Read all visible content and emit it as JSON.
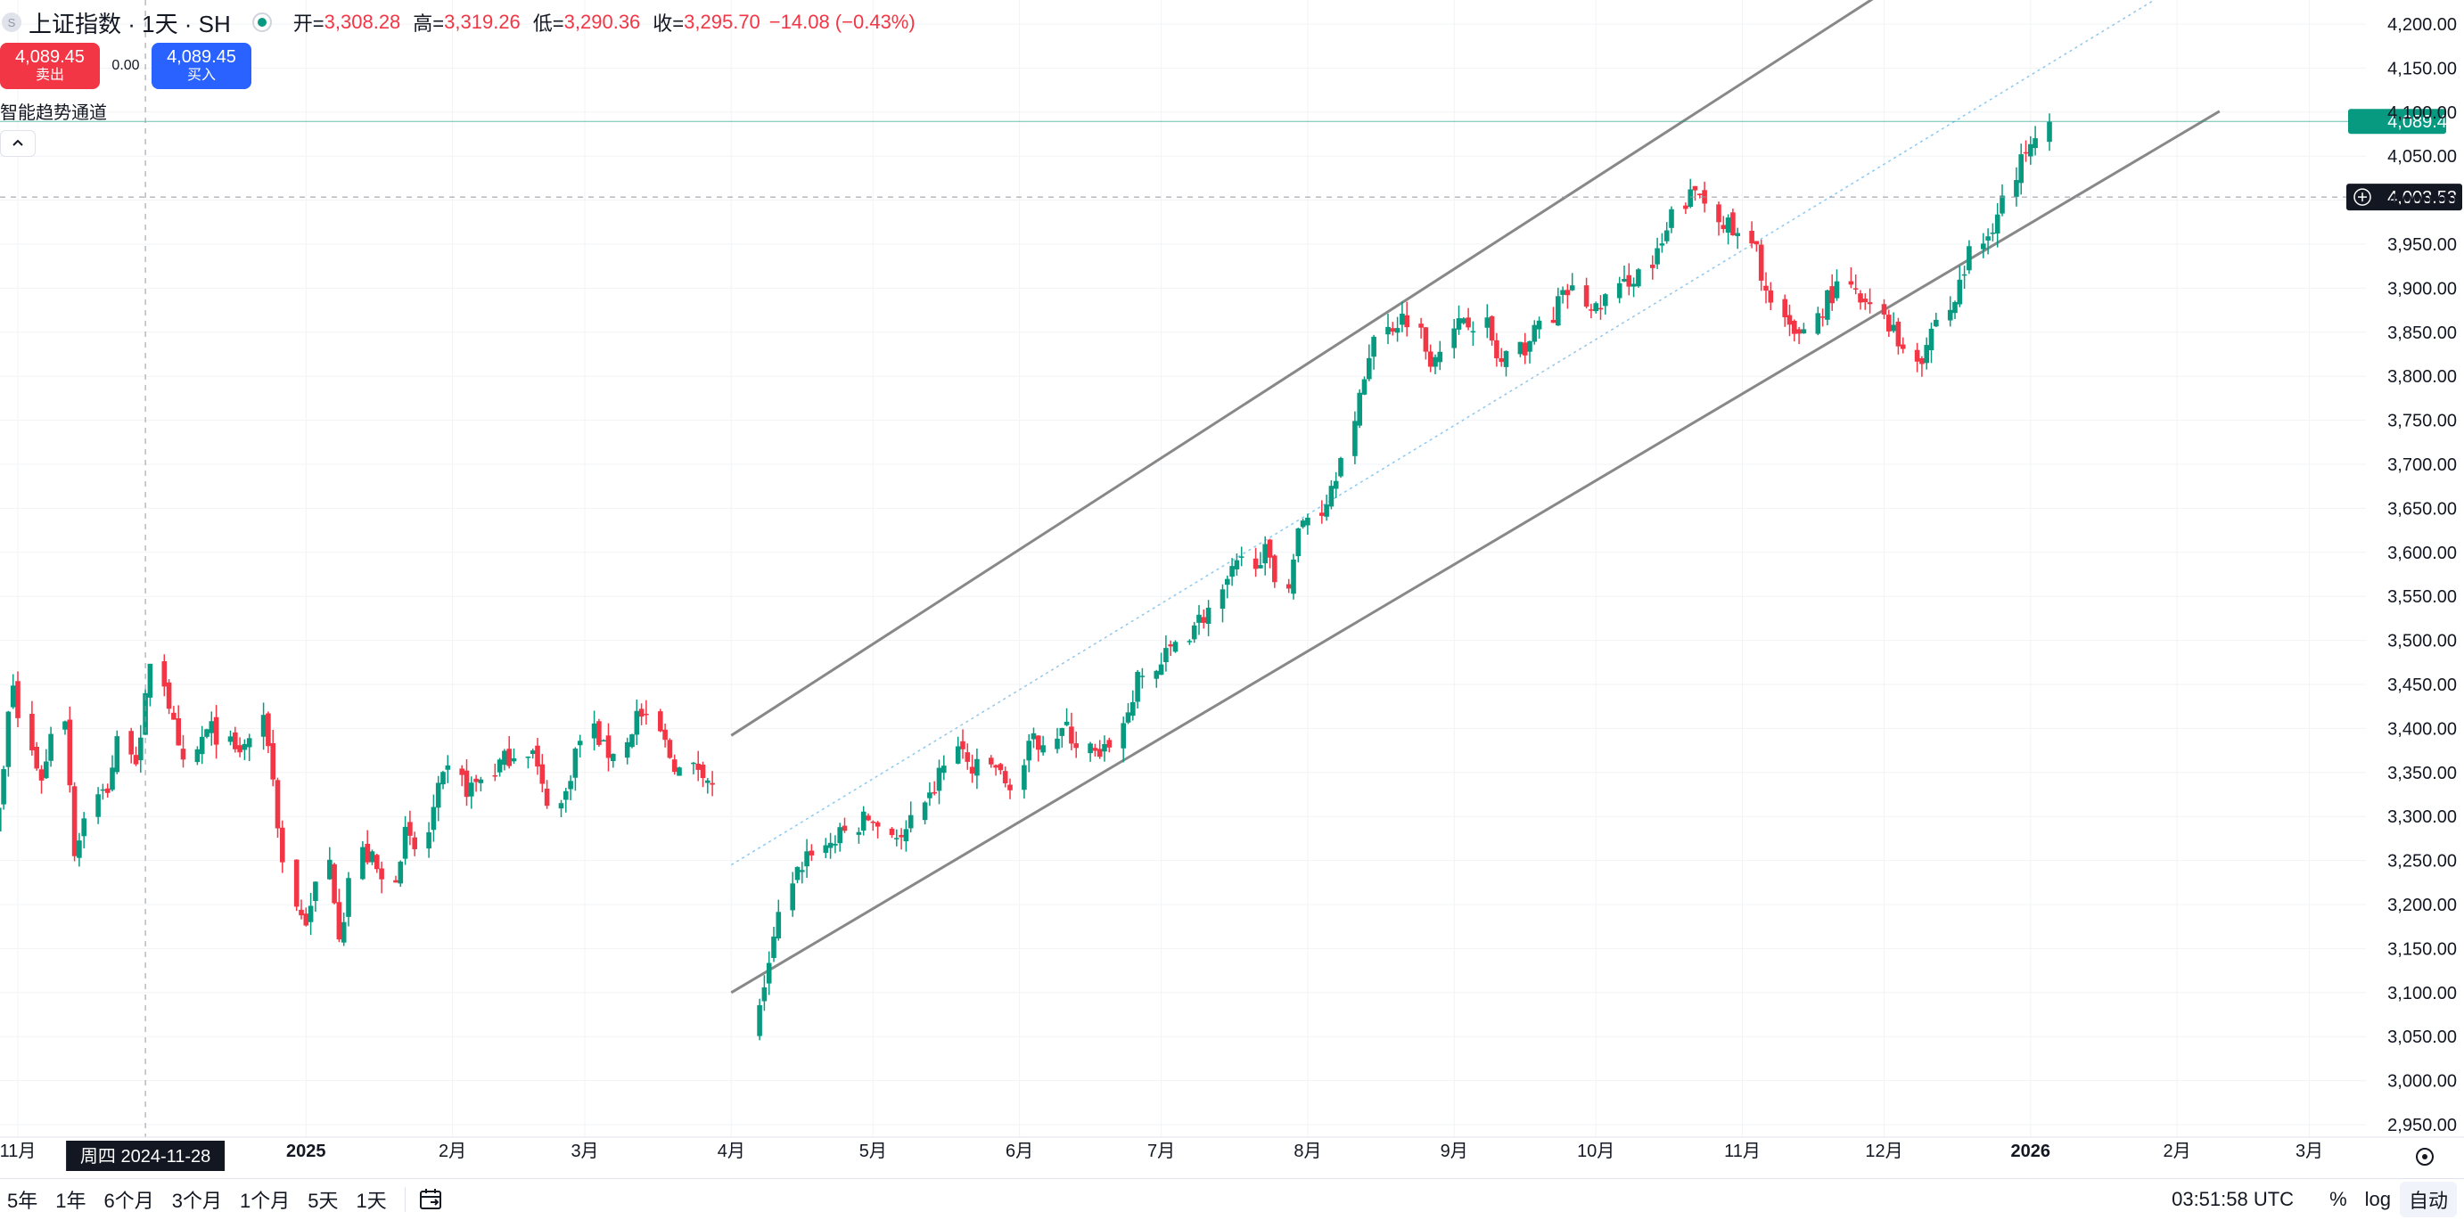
{
  "header": {
    "symbol": "上证指数 · 1天 · SH",
    "symbol_icon": "S",
    "ohlc": {
      "open_label": "开=",
      "open": "3,308.28",
      "high_label": "高=",
      "high": "3,319.26",
      "low_label": "低=",
      "low": "3,290.36",
      "close_label": "收=",
      "close": "3,295.70",
      "change": "−14.08 (−0.43%)"
    }
  },
  "trade": {
    "sell_price": "4,089.45",
    "sell_label": "卖出",
    "spread": "0.00",
    "buy_price": "4,089.45",
    "buy_label": "买入"
  },
  "indicator": {
    "name": "智能趋势通道",
    "collapse_icon": "chevron-up-icon"
  },
  "bottom_bar": {
    "ranges": [
      "5年",
      "1年",
      "6个月",
      "3个月",
      "1个月",
      "5天",
      "1天"
    ],
    "date_range_icon": "calendar-goto-icon",
    "clock": "03:51:58 UTC",
    "percent_label": "%",
    "log_label": "log",
    "auto_label": "自动"
  },
  "chart_data": {
    "type": "candlestick",
    "colors": {
      "up": "#089981",
      "down": "#f23645",
      "channel": "#888888",
      "midline": "#8ec8ef",
      "last_price": "#089981",
      "crosshair_badge": "#131722"
    },
    "price_axis": {
      "ylim": [
        2950,
        4200
      ],
      "ticks": [
        "2,950.00",
        "3,000.00",
        "3,050.00",
        "3,100.00",
        "3,150.00",
        "3,200.00",
        "3,250.00",
        "3,300.00",
        "3,350.00",
        "3,400.00",
        "3,450.00",
        "3,500.00",
        "3,550.00",
        "3,600.00",
        "3,650.00",
        "3,700.00",
        "3,750.00",
        "3,800.00",
        "3,850.00",
        "3,900.00",
        "3,950.00",
        "4,000.00",
        "4,050.00",
        "4,100.00",
        "4,150.00",
        "4,200.00"
      ]
    },
    "time_axis": {
      "ticks": [
        {
          "label": "11月",
          "date": "2024-11-01",
          "bold": false
        },
        {
          "label": "2025",
          "date": "2025-01-01",
          "bold": true
        },
        {
          "label": "2月",
          "date": "2025-02-01",
          "bold": false
        },
        {
          "label": "3月",
          "date": "2025-03-01",
          "bold": false
        },
        {
          "label": "4月",
          "date": "2025-04-01",
          "bold": false
        },
        {
          "label": "5月",
          "date": "2025-05-01",
          "bold": false
        },
        {
          "label": "6月",
          "date": "2025-06-01",
          "bold": false
        },
        {
          "label": "7月",
          "date": "2025-07-01",
          "bold": false
        },
        {
          "label": "8月",
          "date": "2025-08-01",
          "bold": false
        },
        {
          "label": "9月",
          "date": "2025-09-01",
          "bold": false
        },
        {
          "label": "10月",
          "date": "2025-10-01",
          "bold": false
        },
        {
          "label": "11月",
          "date": "2025-11-01",
          "bold": false
        },
        {
          "label": "12月",
          "date": "2025-12-01",
          "bold": false
        },
        {
          "label": "2026",
          "date": "2026-01-01",
          "bold": true
        },
        {
          "label": "2月",
          "date": "2026-02-01",
          "bold": false
        },
        {
          "label": "3月",
          "date": "2026-03-01",
          "bold": false
        }
      ]
    },
    "last_price": {
      "label": "4,089.45",
      "value": 4089.45
    },
    "crosshair": {
      "price_label": "4,003.53",
      "price": 4003.53,
      "date_label": "周四 2024-11-28",
      "date": "2024-11-28"
    },
    "channel": {
      "upper": [
        [
          "2025-04-01",
          3392
        ],
        [
          "2025-11-29",
          4230
        ]
      ],
      "lower": [
        [
          "2025-04-01",
          3100
        ],
        [
          "2026-02-10",
          4101
        ]
      ],
      "middle": [
        [
          "2025-04-01",
          3245
        ],
        [
          "2026-01-28",
          4230
        ]
      ]
    },
    "segments": [
      {
        "from": "2024-10-24",
        "to": "2025-03-30",
        "path": [
          3270,
          3310,
          3460,
          3370,
          3340,
          3430,
          3250,
          3320,
          3330,
          3390,
          3360,
          3480,
          3420,
          3350,
          3390,
          3400,
          3370,
          3380,
          3410,
          3300,
          3190,
          3180,
          3250,
          3160,
          3260,
          3250,
          3220,
          3280,
          3260,
          3320,
          3350,
          3330,
          3340,
          3360,
          3370,
          3380,
          3330,
          3310,
          3370,
          3400,
          3370,
          3380,
          3420,
          3400,
          3370,
          3350,
          3360,
          3330
        ]
      },
      {
        "from": "2025-04-07",
        "to": "2026-01-05",
        "path": [
          3090,
          3150,
          3230,
          3260,
          3270,
          3280,
          3300,
          3290,
          3270,
          3300,
          3340,
          3380,
          3350,
          3360,
          3330,
          3380,
          3390,
          3400,
          3380,
          3360,
          3400,
          3450,
          3470,
          3490,
          3520,
          3530,
          3570,
          3590,
          3600,
          3560,
          3630,
          3650,
          3690,
          3760,
          3840,
          3860,
          3870,
          3820,
          3840,
          3870,
          3860,
          3810,
          3830,
          3850,
          3880,
          3900,
          3870,
          3890,
          3910,
          3920,
          3950,
          4000,
          4010,
          3980,
          3960,
          3940,
          3880,
          3840,
          3860,
          3890,
          3900,
          3880,
          3870,
          3840,
          3820,
          3860,
          3890,
          3940,
          3970,
          4010,
          4070,
          4089
        ]
      }
    ]
  }
}
